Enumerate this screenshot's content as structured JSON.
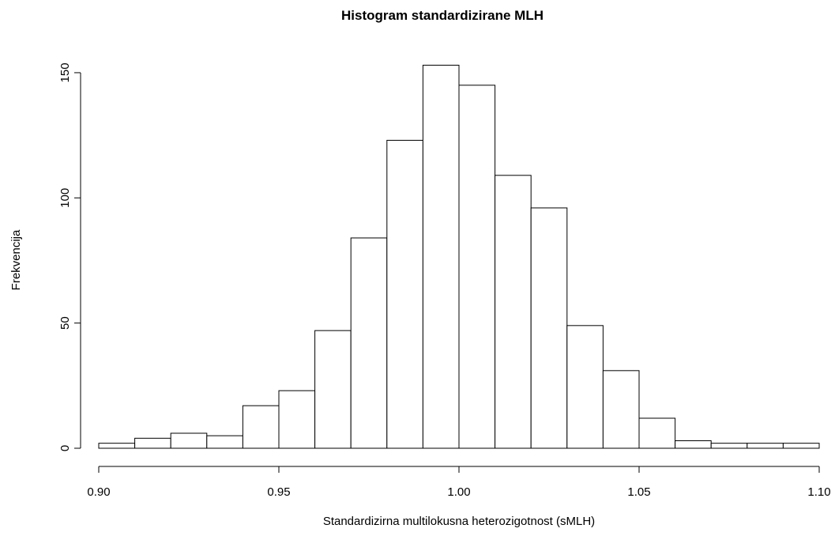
{
  "chart_data": {
    "type": "bar",
    "title": "Histogram standardizirane MLH",
    "xlabel": "Standardizirna multilokusna heterozigotnost (sMLH)",
    "ylabel": "Frekvencija",
    "bins": [
      {
        "start": 0.9,
        "end": 0.91,
        "count": 2
      },
      {
        "start": 0.91,
        "end": 0.92,
        "count": 4
      },
      {
        "start": 0.92,
        "end": 0.93,
        "count": 6
      },
      {
        "start": 0.93,
        "end": 0.94,
        "count": 5
      },
      {
        "start": 0.94,
        "end": 0.95,
        "count": 17
      },
      {
        "start": 0.95,
        "end": 0.96,
        "count": 23
      },
      {
        "start": 0.96,
        "end": 0.97,
        "count": 47
      },
      {
        "start": 0.97,
        "end": 0.98,
        "count": 84
      },
      {
        "start": 0.98,
        "end": 0.99,
        "count": 123
      },
      {
        "start": 0.99,
        "end": 1.0,
        "count": 153
      },
      {
        "start": 1.0,
        "end": 1.01,
        "count": 145
      },
      {
        "start": 1.01,
        "end": 1.02,
        "count": 109
      },
      {
        "start": 1.02,
        "end": 1.03,
        "count": 96
      },
      {
        "start": 1.03,
        "end": 1.04,
        "count": 49
      },
      {
        "start": 1.04,
        "end": 1.05,
        "count": 31
      },
      {
        "start": 1.05,
        "end": 1.06,
        "count": 12
      },
      {
        "start": 1.06,
        "end": 1.07,
        "count": 3
      },
      {
        "start": 1.07,
        "end": 1.08,
        "count": 2
      },
      {
        "start": 1.08,
        "end": 1.09,
        "count": 2
      },
      {
        "start": 1.09,
        "end": 1.1,
        "count": 2
      }
    ],
    "xlim": [
      0.9,
      1.1
    ],
    "ylim": [
      0,
      160
    ],
    "xticks": [
      {
        "value": 0.9,
        "label": "0.90"
      },
      {
        "value": 0.95,
        "label": "0.95"
      },
      {
        "value": 1.0,
        "label": "1.00"
      },
      {
        "value": 1.05,
        "label": "1.05"
      },
      {
        "value": 1.1,
        "label": "1.10"
      }
    ],
    "yticks": [
      {
        "value": 0,
        "label": "0"
      },
      {
        "value": 50,
        "label": "50"
      },
      {
        "value": 100,
        "label": "100"
      },
      {
        "value": 150,
        "label": "150"
      }
    ],
    "grid": false,
    "colors": {
      "bar_fill": "#ffffff",
      "bar_stroke": "#000000",
      "axis": "#000000"
    }
  }
}
